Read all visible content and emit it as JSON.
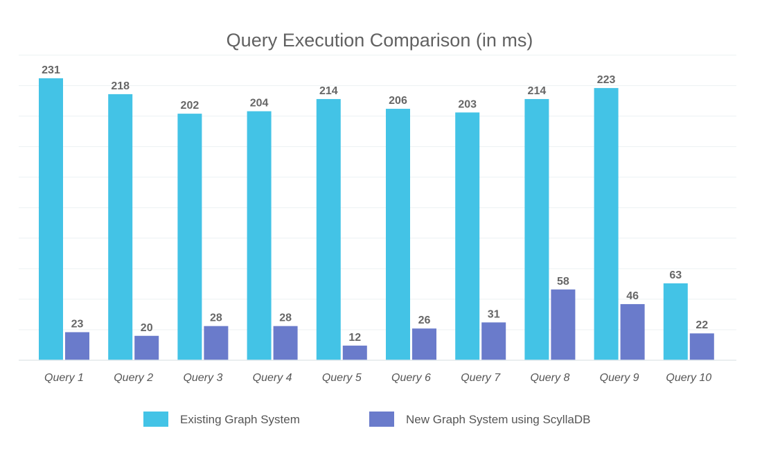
{
  "chart_data": {
    "type": "bar",
    "title": "Query Execution Comparison (in ms)",
    "categories": [
      "Query 1",
      "Query 2",
      "Query 3",
      "Query 4",
      "Query 5",
      "Query 6",
      "Query 7",
      "Query 8",
      "Query 9",
      "Query 10"
    ],
    "series": [
      {
        "name": "Existing Graph System",
        "color": "#43C3E6",
        "values": [
          231,
          218,
          202,
          204,
          214,
          206,
          203,
          214,
          223,
          63
        ]
      },
      {
        "name": "New Graph System using ScyllaDB",
        "color": "#6A7BCB",
        "values": [
          23,
          20,
          28,
          28,
          12,
          26,
          31,
          58,
          46,
          22
        ]
      }
    ],
    "ylim": [
      0,
      250
    ],
    "grid": true,
    "legend_position": "bottom"
  }
}
